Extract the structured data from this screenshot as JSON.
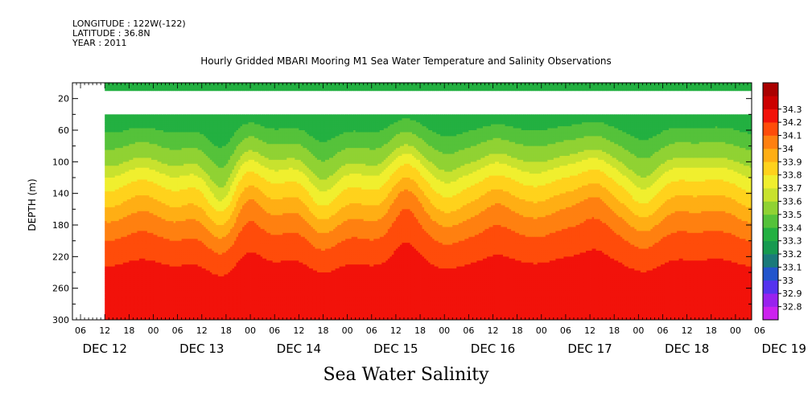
{
  "header": {
    "longitude": "LONGITUDE : 122W(-122)",
    "latitude": "LATITUDE : 36.8N",
    "year": "YEAR : 2011",
    "title": "Hourly Gridded MBARI Mooring M1 Sea Water Temperature and Salinity Observations"
  },
  "footer": {
    "variable_title": "Sea Water Salinity"
  },
  "chart_data": {
    "type": "heatmap",
    "title": "Hourly Gridded MBARI Mooring M1 Sea Water Temperature and Salinity Observations",
    "xlabel": "",
    "ylabel": "DEPTH (m)",
    "ylim": [
      300,
      0
    ],
    "y_ticks": [
      20,
      60,
      100,
      140,
      180,
      220,
      260,
      300
    ],
    "x_hour_ticks": [
      "06",
      "12",
      "18",
      "00",
      "06",
      "12",
      "18",
      "00",
      "06",
      "12",
      "18",
      "00",
      "06",
      "12",
      "18",
      "00",
      "06",
      "12",
      "18",
      "00",
      "06",
      "12",
      "18",
      "00",
      "06",
      "12",
      "18",
      "00",
      "06"
    ],
    "x_day_labels": [
      "DEC 12",
      "DEC 13",
      "DEC 14",
      "DEC 15",
      "DEC 16",
      "DEC 17",
      "DEC 18",
      "DEC 19"
    ],
    "x_range_hours_from_dec12_00": [
      4,
      172
    ],
    "data_start_hours_from_dec12_00": 12,
    "data_depth_ranges": [
      [
        0,
        10
      ],
      [
        40,
        300
      ]
    ],
    "colorbar": {
      "levels": [
        "32.8",
        "32.9",
        "33",
        "33.1",
        "33.2",
        "33.3",
        "33.4",
        "33.5",
        "33.6",
        "33.7",
        "33.8",
        "33.9",
        "34",
        "34.1",
        "34.2",
        "34.3"
      ],
      "colors": [
        "#cc22ee",
        "#9922ee",
        "#5533ee",
        "#2255cc",
        "#1a7a7a",
        "#169a50",
        "#23b041",
        "#55c23a",
        "#90d233",
        "#c8e22e",
        "#f0ef2e",
        "#ffd21c",
        "#ffae14",
        "#ff8010",
        "#ff4c0a",
        "#f2120a",
        "#cc0000",
        "#aa0000"
      ]
    },
    "depth_profile_salinity": [
      {
        "depth": 5,
        "value": 33.3
      },
      {
        "depth": 40,
        "value": 33.35
      },
      {
        "depth": 60,
        "value": 33.4
      },
      {
        "depth": 80,
        "value": 33.5
      },
      {
        "depth": 100,
        "value": 33.6
      },
      {
        "depth": 120,
        "value": 33.75
      },
      {
        "depth": 140,
        "value": 33.85
      },
      {
        "depth": 160,
        "value": 33.95
      },
      {
        "depth": 180,
        "value": 34.05
      },
      {
        "depth": 200,
        "value": 34.12
      },
      {
        "depth": 220,
        "value": 34.18
      },
      {
        "depth": 240,
        "value": 34.23
      },
      {
        "depth": 260,
        "value": 34.28
      },
      {
        "depth": 280,
        "value": 34.25
      },
      {
        "depth": 300,
        "value": 34.22
      }
    ],
    "isohaline_shift_events": [
      {
        "hour": 30,
        "depth_shift": 10
      },
      {
        "hour": 41,
        "depth_shift": 30
      },
      {
        "hour": 47,
        "depth_shift": -25
      },
      {
        "hour": 65,
        "depth_shift": 25
      },
      {
        "hour": 86,
        "depth_shift": -30
      },
      {
        "hour": 97,
        "depth_shift": 20
      },
      {
        "hour": 108,
        "depth_shift": -25
      },
      {
        "hour": 133,
        "depth_shift": -30
      },
      {
        "hour": 145,
        "depth_shift": 15
      },
      {
        "hour": 160,
        "depth_shift": -5
      }
    ]
  }
}
